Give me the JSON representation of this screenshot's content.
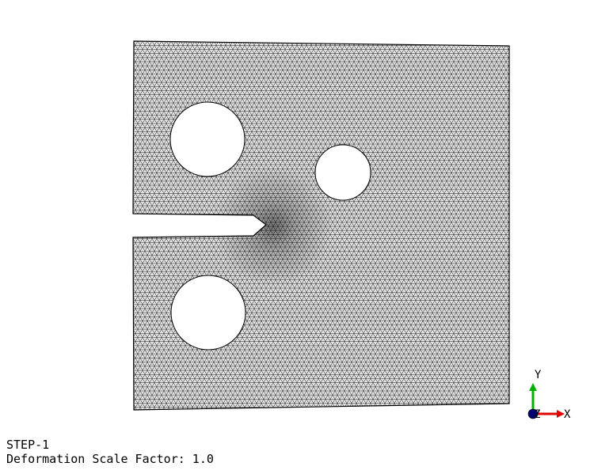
{
  "viewport": {
    "mesh_color": "#000000",
    "background_color": "#ffffff",
    "mesh_style": "triangular finite-element mesh with notched specimen and three circular holes"
  },
  "triad": {
    "x_label": "X",
    "y_label": "Y",
    "z_label": "Z",
    "x_color": "#e00000",
    "y_color": "#00b000",
    "z_color": "#00006e"
  },
  "status": {
    "step": "STEP-1",
    "deformation": "Deformation Scale Factor: 1.0"
  }
}
